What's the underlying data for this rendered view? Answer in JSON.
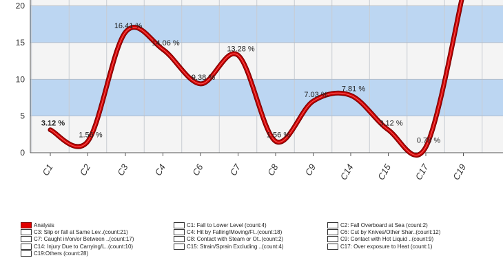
{
  "colors": {
    "band": "#bcd6f2",
    "plot_bg": "#f4f4f4",
    "line": "#cc0000",
    "line_dark": "#7a0000"
  },
  "chart_data": {
    "type": "line",
    "categories": [
      "C1",
      "C2",
      "C3",
      "C4",
      "C6",
      "C7",
      "C8",
      "C9",
      "C14",
      "C15",
      "C17",
      "C19"
    ],
    "series": [
      {
        "name": "Analysis",
        "values": [
          3.12,
          1.56,
          16.41,
          14.06,
          9.38,
          13.28,
          1.56,
          7.03,
          7.81,
          3.12,
          0.78,
          21.88
        ],
        "labels": [
          "3.12 %",
          "1.56 %",
          "16.41 %",
          "14.06 %",
          "9.38 %",
          "13.28 %",
          "1.56 %",
          "7.03 %",
          "7.81 %",
          "3.12 %",
          "0.78 %",
          ""
        ]
      }
    ],
    "y_ticks": [
      "0",
      "5",
      "10",
      "15",
      "20"
    ],
    "ylim": [
      0,
      20.8
    ],
    "grid": true,
    "smooth": true,
    "legend_position": "bottom"
  },
  "legend": {
    "items": [
      {
        "label": "Analysis",
        "checked": true
      },
      {
        "label": "C1: Fall to Lower Level (count:4)",
        "checked": false
      },
      {
        "label": "C2: Fall Overboard at Sea (count:2)",
        "checked": false
      },
      {
        "label": "C3: Slip or fall at Same Lev..(count:21)",
        "checked": false
      },
      {
        "label": "C4: Hit by Falling/Moving/Fl..(count:18)",
        "checked": false
      },
      {
        "label": "C6: Cut by Knives/Other Shar..(count:12)",
        "checked": false
      },
      {
        "label": "C7: Caught in/on/or Between ..(count:17)",
        "checked": false
      },
      {
        "label": "C8: Contact with Steam or Ot..(count:2)",
        "checked": false
      },
      {
        "label": "C9: Contact with Hot Liquid ..(count:9)",
        "checked": false
      },
      {
        "label": "C14: Injury Due to Carrying/L..(count:10)",
        "checked": false
      },
      {
        "label": "C15: Strain/Sprain Excluding ..(count:4)",
        "checked": false
      },
      {
        "label": "C17: Over exposure to Heat (count:1)",
        "checked": false
      },
      {
        "label": "C19:Others (count:28)",
        "checked": false
      }
    ]
  }
}
